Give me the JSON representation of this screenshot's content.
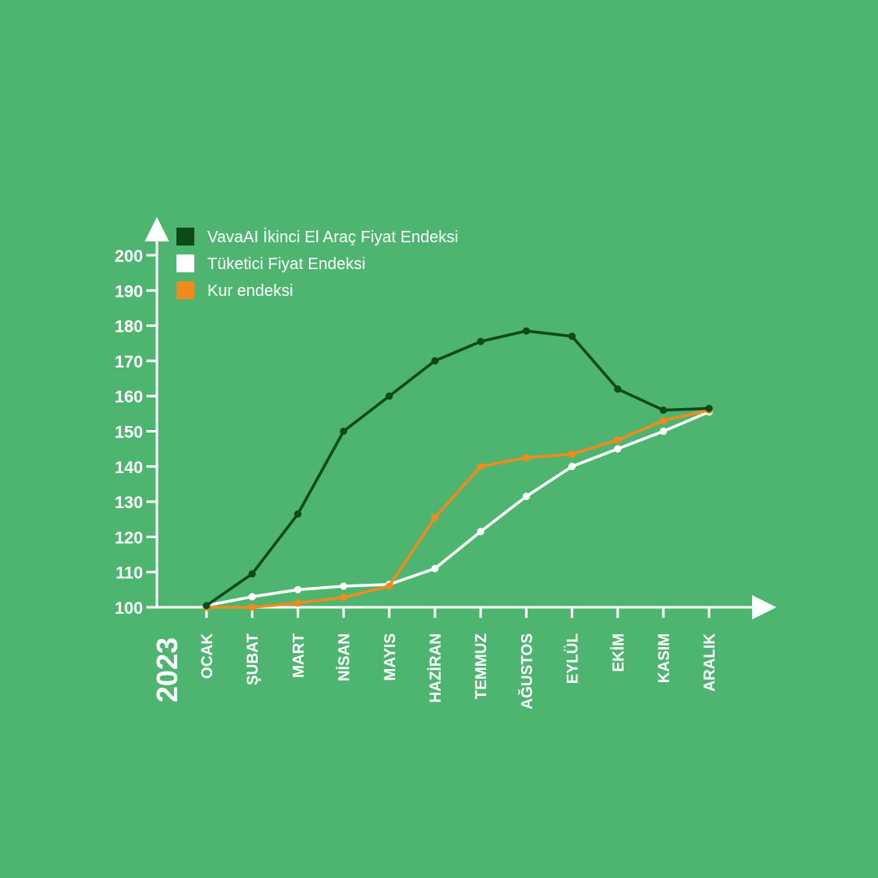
{
  "colors": {
    "background": "#4db570",
    "axis": "#ffffff",
    "dark_green": "#0e4a17",
    "white": "#ffffff",
    "orange": "#f08a1c"
  },
  "chart_data": {
    "type": "line",
    "title": "",
    "year_label": "2023",
    "xlabel": "",
    "ylabel": "",
    "categories": [
      "OCAK",
      "ŞUBAT",
      "MART",
      "NİSAN",
      "MAYIS",
      "HAZİRAN",
      "TEMMUZ",
      "AĞUSTOS",
      "EYLÜL",
      "EKİM",
      "KASIM",
      "ARALIK"
    ],
    "ylim": [
      100,
      200
    ],
    "yticks": [
      100,
      110,
      120,
      130,
      140,
      150,
      160,
      170,
      180,
      190,
      200
    ],
    "legend_position": "top-left",
    "series": [
      {
        "name": "VavaAI İkinci El Araç Fiyat Endeksi",
        "color": "#0e4a17",
        "values": [
          100.5,
          109.5,
          126.5,
          150,
          160,
          170,
          175.5,
          178.5,
          177,
          162,
          156,
          156.5
        ]
      },
      {
        "name": "Tüketici Fiyat Endeksi",
        "color": "#ffffff",
        "values": [
          100.5,
          103,
          105,
          106,
          106.5,
          111,
          121.5,
          131.5,
          140,
          145,
          150,
          155.5
        ]
      },
      {
        "name": "Kur endeksi",
        "color": "#f08a1c",
        "values": [
          100,
          100,
          101.2,
          102.8,
          106,
          125.5,
          140,
          142.5,
          143.5,
          147.5,
          153,
          156
        ]
      }
    ]
  }
}
